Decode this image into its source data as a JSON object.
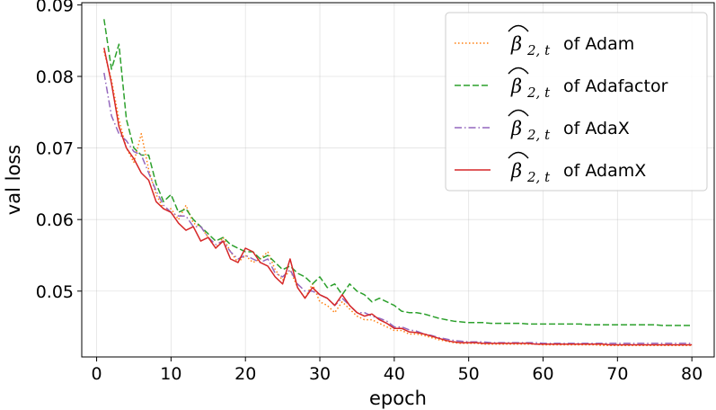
{
  "chart_data": {
    "type": "line",
    "xlabel": "epoch",
    "ylabel": "val loss",
    "xlim": [
      -2,
      83
    ],
    "ylim": [
      0.0408,
      0.0903
    ],
    "xticks": [
      0,
      10,
      20,
      30,
      40,
      50,
      60,
      70,
      80
    ],
    "yticks": [
      0.05,
      0.06,
      0.07,
      0.08,
      0.09
    ],
    "grid": true,
    "legend_position": "top-right",
    "series": [
      {
        "name": "of Adam",
        "math_symbol": "β",
        "math_sub": "2, t",
        "color": "#ff7f0e",
        "dash": "dotted",
        "x": [
          1,
          2,
          3,
          4,
          5,
          6,
          7,
          8,
          9,
          10,
          11,
          12,
          13,
          14,
          15,
          16,
          17,
          18,
          19,
          20,
          21,
          22,
          23,
          24,
          25,
          26,
          27,
          28,
          29,
          30,
          31,
          32,
          33,
          34,
          35,
          36,
          37,
          38,
          39,
          40,
          41,
          42,
          43,
          44,
          45,
          46,
          47,
          48,
          49,
          50,
          51,
          52,
          53,
          54,
          55,
          56,
          57,
          58,
          59,
          60,
          61,
          62,
          63,
          64,
          65,
          66,
          67,
          68,
          69,
          70,
          71,
          72,
          73,
          74,
          75,
          76,
          77,
          78,
          79,
          80
        ],
        "y": [
          0.0835,
          0.0795,
          0.074,
          0.07,
          0.068,
          0.072,
          0.067,
          0.0635,
          0.0615,
          0.0615,
          0.06,
          0.062,
          0.0595,
          0.059,
          0.0575,
          0.056,
          0.0575,
          0.0555,
          0.054,
          0.055,
          0.054,
          0.0545,
          0.0555,
          0.053,
          0.0515,
          0.053,
          0.0505,
          0.049,
          0.051,
          0.0485,
          0.048,
          0.047,
          0.0485,
          0.0475,
          0.0465,
          0.046,
          0.046,
          0.0455,
          0.045,
          0.0445,
          0.0445,
          0.044,
          0.044,
          0.0438,
          0.0435,
          0.0432,
          0.043,
          0.0428,
          0.0427,
          0.0427,
          0.0427,
          0.0426,
          0.0426,
          0.0426,
          0.0426,
          0.0426,
          0.0426,
          0.0426,
          0.0426,
          0.0425,
          0.0425,
          0.0425,
          0.0425,
          0.0425,
          0.0425,
          0.0425,
          0.0425,
          0.0424,
          0.0424,
          0.0424,
          0.0424,
          0.0424,
          0.0424,
          0.0424,
          0.0424,
          0.0424,
          0.0424,
          0.0424,
          0.0424,
          0.0424
        ]
      },
      {
        "name": "of Adafactor",
        "math_symbol": "β",
        "math_sub": "2, t",
        "color": "#2ca02c",
        "dash": "dashed",
        "x": [
          1,
          2,
          3,
          4,
          5,
          6,
          7,
          8,
          9,
          10,
          11,
          12,
          13,
          14,
          15,
          16,
          17,
          18,
          19,
          20,
          21,
          22,
          23,
          24,
          25,
          26,
          27,
          28,
          29,
          30,
          31,
          32,
          33,
          34,
          35,
          36,
          37,
          38,
          39,
          40,
          41,
          42,
          43,
          44,
          45,
          46,
          47,
          48,
          49,
          50,
          51,
          52,
          53,
          54,
          55,
          56,
          57,
          58,
          59,
          60,
          61,
          62,
          63,
          64,
          65,
          66,
          67,
          68,
          69,
          70,
          71,
          72,
          73,
          74,
          75,
          76,
          77,
          78,
          79,
          80
        ],
        "y": [
          0.088,
          0.081,
          0.0845,
          0.074,
          0.07,
          0.069,
          0.069,
          0.065,
          0.0625,
          0.0635,
          0.061,
          0.0615,
          0.06,
          0.059,
          0.058,
          0.057,
          0.0575,
          0.0565,
          0.056,
          0.0555,
          0.0555,
          0.0545,
          0.055,
          0.054,
          0.053,
          0.0535,
          0.0525,
          0.052,
          0.051,
          0.052,
          0.0505,
          0.051,
          0.0495,
          0.051,
          0.05,
          0.0495,
          0.0485,
          0.049,
          0.0485,
          0.048,
          0.0472,
          0.047,
          0.047,
          0.0468,
          0.0465,
          0.0462,
          0.046,
          0.0458,
          0.0457,
          0.0456,
          0.0456,
          0.0456,
          0.0455,
          0.0455,
          0.0455,
          0.0455,
          0.0455,
          0.0454,
          0.0454,
          0.0454,
          0.0454,
          0.0454,
          0.0454,
          0.0454,
          0.0454,
          0.0453,
          0.0453,
          0.0453,
          0.0453,
          0.0453,
          0.0453,
          0.0453,
          0.0453,
          0.0453,
          0.0453,
          0.0452,
          0.0452,
          0.0452,
          0.0452,
          0.0452
        ]
      },
      {
        "name": "of AdaX",
        "math_symbol": "β",
        "math_sub": "2, t",
        "color": "#9467bd",
        "dash": "dashdot",
        "x": [
          1,
          2,
          3,
          4,
          5,
          6,
          7,
          8,
          9,
          10,
          11,
          12,
          13,
          14,
          15,
          16,
          17,
          18,
          19,
          20,
          21,
          22,
          23,
          24,
          25,
          26,
          27,
          28,
          29,
          30,
          31,
          32,
          33,
          34,
          35,
          36,
          37,
          38,
          39,
          40,
          41,
          42,
          43,
          44,
          45,
          46,
          47,
          48,
          49,
          50,
          51,
          52,
          53,
          54,
          55,
          56,
          57,
          58,
          59,
          60,
          61,
          62,
          63,
          64,
          65,
          66,
          67,
          68,
          69,
          70,
          71,
          72,
          73,
          74,
          75,
          76,
          77,
          78,
          79,
          80
        ],
        "y": [
          0.0805,
          0.0745,
          0.072,
          0.071,
          0.0695,
          0.069,
          0.0665,
          0.064,
          0.062,
          0.061,
          0.0605,
          0.0605,
          0.059,
          0.059,
          0.0575,
          0.0565,
          0.057,
          0.0555,
          0.0545,
          0.055,
          0.0545,
          0.054,
          0.0545,
          0.0525,
          0.052,
          0.053,
          0.051,
          0.05,
          0.05,
          0.0495,
          0.049,
          0.048,
          0.049,
          0.048,
          0.047,
          0.047,
          0.0465,
          0.0462,
          0.0458,
          0.045,
          0.045,
          0.0446,
          0.0444,
          0.044,
          0.0438,
          0.0435,
          0.0433,
          0.0431,
          0.043,
          0.0429,
          0.0429,
          0.0429,
          0.0428,
          0.0428,
          0.0428,
          0.0428,
          0.0428,
          0.0428,
          0.0428,
          0.0427,
          0.0427,
          0.0427,
          0.0427,
          0.0427,
          0.0427,
          0.0427,
          0.0427,
          0.0427,
          0.0427,
          0.0427,
          0.0427,
          0.0427,
          0.0427,
          0.0427,
          0.0427,
          0.0427,
          0.0427,
          0.0427,
          0.0427,
          0.0427
        ]
      },
      {
        "name": "of AdamX",
        "math_symbol": "β",
        "math_sub": "2, t",
        "color": "#d62728",
        "dash": "solid",
        "x": [
          1,
          2,
          3,
          4,
          5,
          6,
          7,
          8,
          9,
          10,
          11,
          12,
          13,
          14,
          15,
          16,
          17,
          18,
          19,
          20,
          21,
          22,
          23,
          24,
          25,
          26,
          27,
          28,
          29,
          30,
          31,
          32,
          33,
          34,
          35,
          36,
          37,
          38,
          39,
          40,
          41,
          42,
          43,
          44,
          45,
          46,
          47,
          48,
          49,
          50,
          51,
          52,
          53,
          54,
          55,
          56,
          57,
          58,
          59,
          60,
          61,
          62,
          63,
          64,
          65,
          66,
          67,
          68,
          69,
          70,
          71,
          72,
          73,
          74,
          75,
          76,
          77,
          78,
          79,
          80
        ],
        "y": [
          0.084,
          0.079,
          0.073,
          0.07,
          0.0685,
          0.0665,
          0.0655,
          0.0625,
          0.0615,
          0.061,
          0.0595,
          0.0585,
          0.059,
          0.057,
          0.0575,
          0.056,
          0.057,
          0.0545,
          0.054,
          0.056,
          0.0555,
          0.054,
          0.0535,
          0.052,
          0.051,
          0.0545,
          0.0505,
          0.049,
          0.0505,
          0.0495,
          0.049,
          0.048,
          0.0495,
          0.048,
          0.047,
          0.0465,
          0.0468,
          0.046,
          0.0455,
          0.0448,
          0.0448,
          0.0443,
          0.0442,
          0.044,
          0.0437,
          0.0434,
          0.0431,
          0.0429,
          0.0428,
          0.0428,
          0.0428,
          0.0427,
          0.0427,
          0.0427,
          0.0427,
          0.0427,
          0.0427,
          0.0427,
          0.0426,
          0.0426,
          0.0426,
          0.0426,
          0.0426,
          0.0426,
          0.0426,
          0.0426,
          0.0426,
          0.0426,
          0.0425,
          0.0425,
          0.0425,
          0.0425,
          0.0425,
          0.0425,
          0.0425,
          0.0425,
          0.0425,
          0.0425,
          0.0425,
          0.0425
        ]
      }
    ]
  }
}
